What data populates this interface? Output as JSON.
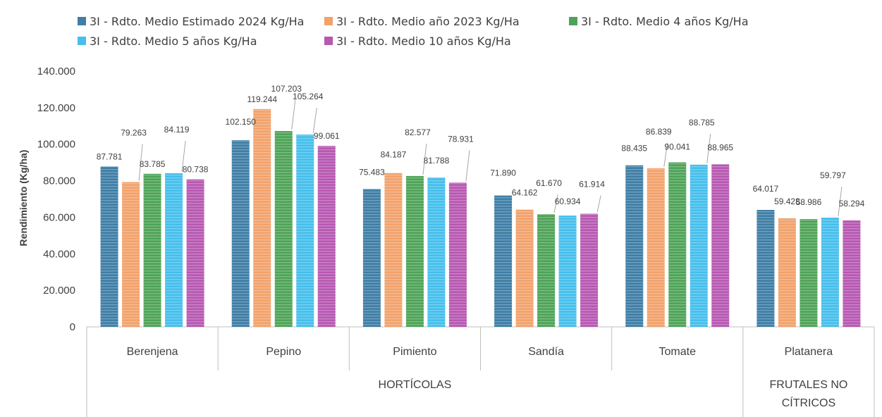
{
  "chart_data": {
    "type": "bar",
    "ylabel": "Rendimiento (Kg/ha)",
    "ylim": [
      0,
      140000
    ],
    "yticks": [
      "0",
      "20.000",
      "40.000",
      "60.000",
      "80.000",
      "100.000",
      "120.000",
      "140.000"
    ],
    "ytick_values": [
      0,
      20000,
      40000,
      60000,
      80000,
      100000,
      120000,
      140000
    ],
    "grid": false,
    "legend_position": "top",
    "categories": [
      "Berenjena",
      "Pepino",
      "Pimiento",
      "Sandía",
      "Tomate",
      "Platanera"
    ],
    "groups": [
      {
        "label": "HORTÍCOLAS",
        "categories": [
          "Berenjena",
          "Pepino",
          "Pimiento",
          "Sandía",
          "Tomate"
        ]
      },
      {
        "label": "FRUTALES NO CÍTRICOS",
        "label_lines": [
          "FRUTALES NO",
          "CÍTRICOS"
        ],
        "categories": [
          "Platanera"
        ]
      }
    ],
    "series": [
      {
        "name": "3I - Rdto. Medio Estimado 2024 Kg/Ha",
        "color": "#3f7ea6",
        "values": [
          87781,
          102150,
          75483,
          71890,
          88435,
          64017
        ],
        "labels": [
          "87.781",
          "102.150",
          "75.483",
          "71.890",
          "88.435",
          "64.017"
        ]
      },
      {
        "name": "3I - Rdto. Medio año 2023 Kg/Ha",
        "color": "#f2a26b",
        "values": [
          79263,
          119244,
          84187,
          64162,
          86839,
          59428
        ],
        "labels": [
          "79.263",
          "119.244",
          "84.187",
          "64.162",
          "86.839",
          "59.428"
        ]
      },
      {
        "name": "3I - Rdto. Medio 4 años Kg/Ha",
        "color": "#4ea357",
        "values": [
          83785,
          107203,
          82577,
          61670,
          90041,
          58986
        ],
        "labels": [
          "83.785",
          "107.203",
          "82.577",
          "61.670",
          "90.041",
          "58.986"
        ]
      },
      {
        "name": "3I - Rdto. Medio 5 años Kg/Ha",
        "color": "#45bfec",
        "values": [
          84119,
          105264,
          81788,
          60934,
          88785,
          59797
        ],
        "labels": [
          "84.119",
          "105.264",
          "81.788",
          "60.934",
          "88.785",
          "59.797"
        ]
      },
      {
        "name": "3I - Rdto. Medio 10 años Kg/Ha",
        "color": "#b758b2",
        "values": [
          80738,
          99061,
          78931,
          61914,
          88965,
          58294
        ],
        "labels": [
          "80.738",
          "99.061",
          "78.931",
          "61.914",
          "88.965",
          "58.294"
        ]
      }
    ]
  }
}
